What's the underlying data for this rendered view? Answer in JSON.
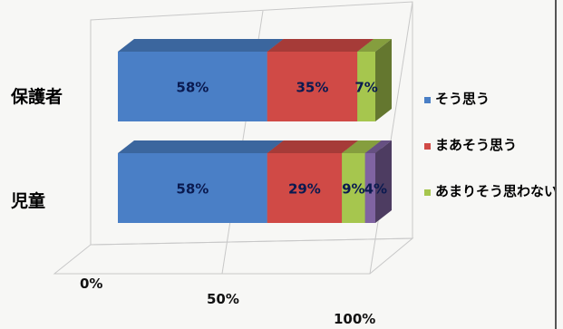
{
  "chart_data": {
    "type": "bar",
    "orientation": "horizontal",
    "stacked": "percent",
    "style": "3d",
    "categories": [
      "保護者",
      "児童"
    ],
    "series": [
      {
        "name": "そう思う",
        "color": "#4a7fc6",
        "values": [
          58,
          58
        ]
      },
      {
        "name": "まあそう思う",
        "color": "#d04a46",
        "values": [
          35,
          29
        ]
      },
      {
        "name": "あまりそう思わない",
        "color": "#a6c64e",
        "values": [
          7,
          9
        ]
      },
      {
        "name": "",
        "color": "#8064a2",
        "values": [
          0,
          4
        ]
      }
    ],
    "data_labels": [
      [
        "58%",
        "35%",
        "7%",
        ""
      ],
      [
        "58%",
        "29%",
        "9%",
        "4%"
      ]
    ],
    "x_ticks": [
      "0%",
      "50%",
      "100%"
    ],
    "xlim": [
      0,
      100
    ],
    "grid": true,
    "legend": {
      "position": "right",
      "entries": [
        "そう思う",
        "まあそう思う",
        "あまりそう思わない"
      ]
    }
  }
}
